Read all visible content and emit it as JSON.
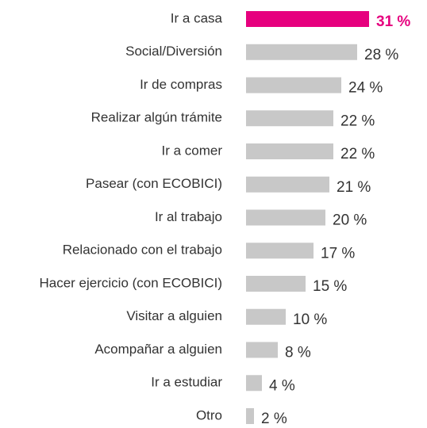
{
  "chart_data": {
    "type": "barh",
    "categories": [
      "Ir a casa",
      "Social/Diversión",
      "Ir de compras",
      "Realizar algún trámite",
      "Ir a comer",
      "Pasear (con ECOBICI)",
      "Ir al trabajo",
      "Relacionado con el trabajo",
      "Hacer ejercicio (con ECOBICI)",
      "Visitar a alguien",
      "Acompañar a alguien",
      "Ir a estudiar",
      "Otro"
    ],
    "values": [
      31,
      28,
      24,
      22,
      22,
      21,
      20,
      17,
      15,
      10,
      8,
      4,
      2
    ],
    "value_labels": [
      "31 %",
      "28 %",
      "24 %",
      "22 %",
      "22 %",
      "21 %",
      "20 %",
      "17 %",
      "15 %",
      "10 %",
      "8 %",
      "4 %",
      "2 %"
    ],
    "colors": [
      "#e6007e",
      "#c8c8c8",
      "#c8c8c8",
      "#c8c8c8",
      "#c8c8c8",
      "#c8c8c8",
      "#c8c8c8",
      "#c8c8c8",
      "#c8c8c8",
      "#c8c8c8",
      "#c8c8c8",
      "#c8c8c8",
      "#c8c8c8"
    ]
  }
}
